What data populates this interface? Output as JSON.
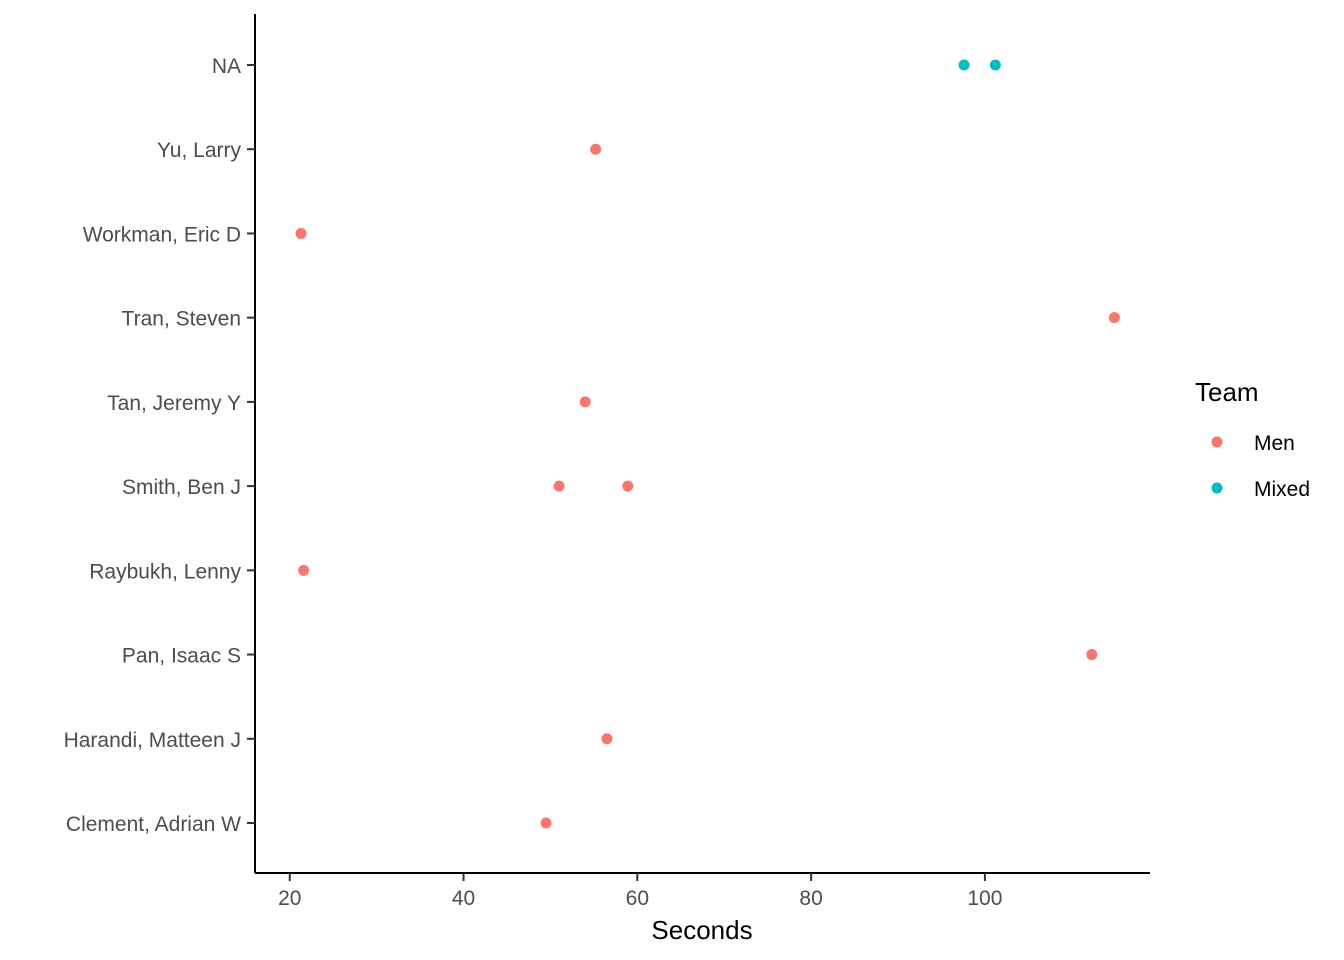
{
  "chart_data": {
    "type": "scatter",
    "title": "",
    "xlabel": "Seconds",
    "ylabel": "",
    "xlim": [
      16,
      119
    ],
    "x_ticks": [
      20,
      40,
      60,
      80,
      100
    ],
    "categories": [
      "Clement, Adrian W",
      "Harandi, Matteen J",
      "Pan, Isaac S",
      "Raybukh, Lenny",
      "Smith, Ben J",
      "Tan, Jeremy Y",
      "Tran, Steven",
      "Workman, Eric D",
      "Yu, Larry",
      "NA"
    ],
    "grid": false,
    "legend": {
      "title": "Team",
      "position": "right"
    },
    "series": [
      {
        "name": "Men",
        "color": "#F8766D",
        "points": [
          {
            "y": "Clement, Adrian W",
            "x": 49.5
          },
          {
            "y": "Harandi, Matteen J",
            "x": 56.5
          },
          {
            "y": "Pan, Isaac S",
            "x": 112.3
          },
          {
            "y": "Raybukh, Lenny",
            "x": 21.6
          },
          {
            "y": "Smith, Ben J",
            "x": 51.0
          },
          {
            "y": "Smith, Ben J",
            "x": 58.9
          },
          {
            "y": "Tan, Jeremy Y",
            "x": 54.0
          },
          {
            "y": "Tran, Steven",
            "x": 114.9
          },
          {
            "y": "Workman, Eric D",
            "x": 21.3
          },
          {
            "y": "Yu, Larry",
            "x": 55.2
          }
        ]
      },
      {
        "name": "Mixed",
        "color": "#00BFC4",
        "points": [
          {
            "y": "NA",
            "x": 97.6
          },
          {
            "y": "NA",
            "x": 101.2
          }
        ]
      }
    ]
  }
}
